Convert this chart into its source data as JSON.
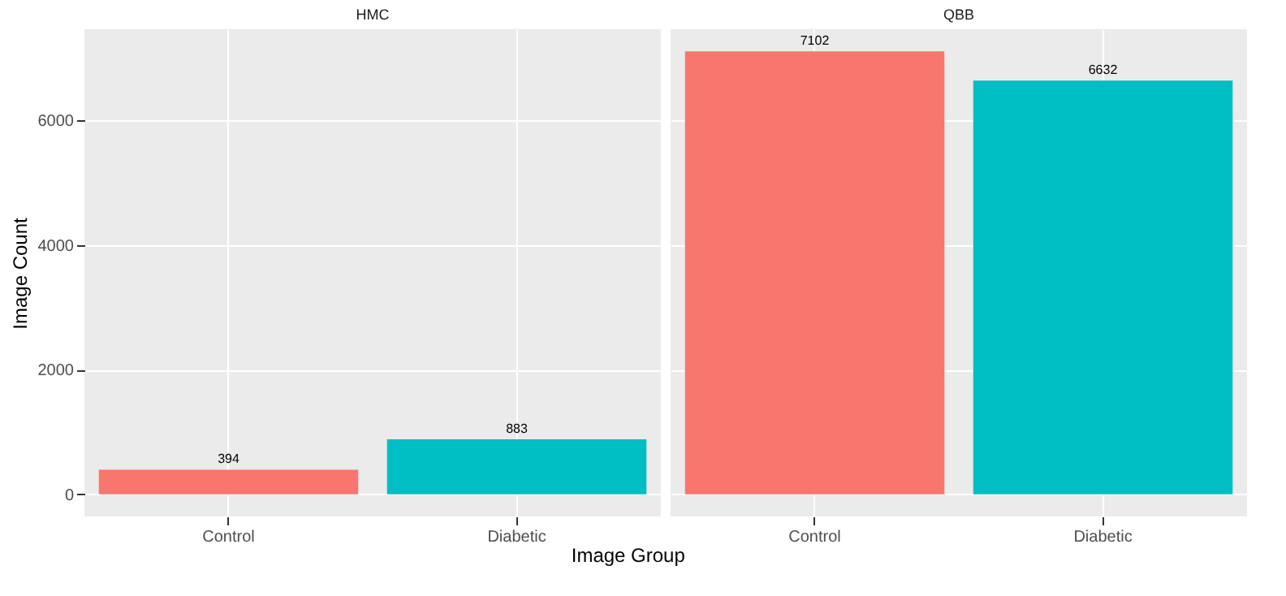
{
  "chart_data": [
    {
      "type": "bar",
      "title": "HMC",
      "ylabel": "Image Count",
      "xlabel": "Image Group",
      "categories": [
        "Control",
        "Diabetic"
      ],
      "values": [
        394,
        883
      ],
      "colors": [
        "#f8766d",
        "#00bfc4"
      ],
      "ylim": [
        -355,
        7457
      ],
      "yticks": [
        0,
        2000,
        4000,
        6000
      ],
      "grid": true,
      "data_labels": true
    },
    {
      "type": "bar",
      "title": "QBB",
      "categories": [
        "Control",
        "Diabetic"
      ],
      "values": [
        7102,
        6632
      ],
      "colors": [
        "#f8766d",
        "#00bfc4"
      ],
      "ylim": [
        -355,
        7457
      ],
      "yticks": [
        0,
        2000,
        4000,
        6000
      ],
      "grid": true,
      "data_labels": true,
      "tick_labels": "x"
    }
  ]
}
